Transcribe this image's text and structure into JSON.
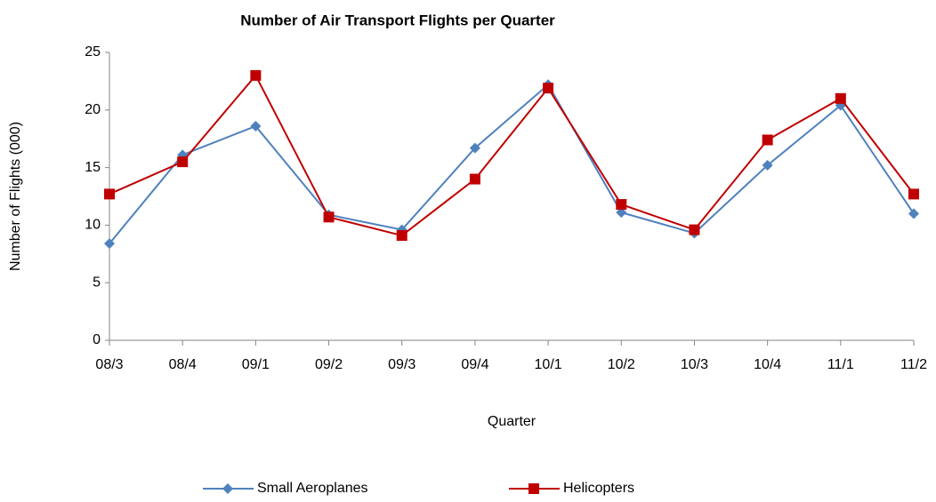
{
  "chart_data": {
    "type": "line",
    "title": "Number of Air Transport Flights per Quarter",
    "x_label": "Quarter",
    "y_label": "Number of Flights (000)",
    "categories": [
      "08/3",
      "08/4",
      "09/1",
      "09/2",
      "09/3",
      "09/4",
      "10/1",
      "10/2",
      "10/3",
      "10/4",
      "11/1",
      "11/2"
    ],
    "series": [
      {
        "name": "Small Aeroplanes",
        "color": "#4f81bd",
        "marker": "diamond",
        "values": [
          8.4,
          16.1,
          18.6,
          10.9,
          9.6,
          16.7,
          22.2,
          11.1,
          9.3,
          15.2,
          20.4,
          11.0
        ]
      },
      {
        "name": "Helicopters",
        "color": "#c00000",
        "marker": "square",
        "values": [
          12.7,
          15.5,
          23.0,
          10.7,
          9.1,
          14.0,
          21.9,
          11.8,
          9.6,
          17.4,
          21.0,
          12.7
        ]
      }
    ],
    "ylim": [
      0,
      25
    ],
    "yticks": [
      0,
      5,
      10,
      15,
      20,
      25
    ],
    "grid": false,
    "legend": "bottom"
  }
}
